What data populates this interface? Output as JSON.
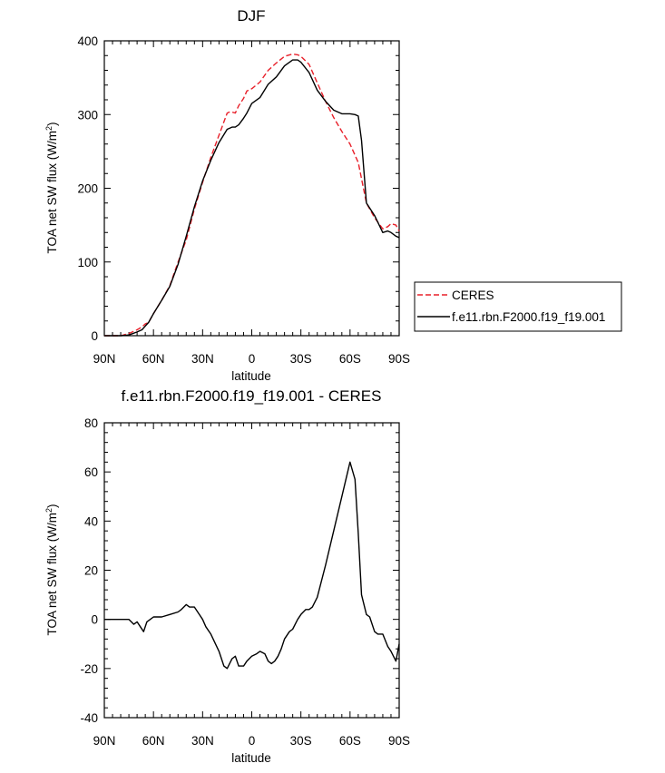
{
  "chart_data": [
    {
      "type": "line",
      "title": "DJF",
      "xlabel": "latitude",
      "ylabel": "TOA net SW flux (W/m",
      "ylabel_sup": "2",
      "ylabel_end": ")",
      "xlim": [
        -90,
        90
      ],
      "ylim": [
        0,
        400
      ],
      "x_ticks": [
        -90,
        -60,
        -30,
        0,
        30,
        60,
        90
      ],
      "x_tick_labels": [
        "90N",
        "60N",
        "30N",
        "0",
        "30S",
        "60S",
        "90S"
      ],
      "y_ticks": [
        0,
        100,
        200,
        300,
        400
      ],
      "y_tick_labels": [
        "0",
        "100",
        "200",
        "300",
        "400"
      ],
      "legend": {
        "placement": "right",
        "items": [
          "CERES",
          "f.e11.rbn.F2000.f19_f19.001"
        ]
      },
      "series": [
        {
          "name": "CERES",
          "color": "#e8202a",
          "dash": "dashed",
          "x": [
            -90,
            -80,
            -75,
            -70,
            -67,
            -65,
            -63,
            -60,
            -55,
            -50,
            -45,
            -40,
            -35,
            -30,
            -25,
            -20,
            -15,
            -13,
            -10,
            -8,
            -5,
            -3,
            0,
            5,
            10,
            15,
            20,
            25,
            28,
            30,
            35,
            40,
            45,
            50,
            55,
            60,
            65,
            70,
            75,
            80,
            83,
            85,
            88,
            90
          ],
          "y": [
            0,
            0,
            3,
            8,
            12,
            16,
            18,
            30,
            48,
            68,
            100,
            130,
            172,
            208,
            242,
            272,
            302,
            304,
            302,
            312,
            322,
            332,
            335,
            344,
            360,
            370,
            379,
            382,
            381,
            379,
            368,
            343,
            318,
            296,
            277,
            260,
            235,
            180,
            160,
            145,
            148,
            152,
            150,
            142
          ]
        },
        {
          "name": "f.e11.rbn.F2000.f19_f19.001",
          "color": "#000000",
          "dash": "solid",
          "x": [
            -90,
            -80,
            -75,
            -70,
            -67,
            -65,
            -63,
            -60,
            -55,
            -50,
            -45,
            -40,
            -35,
            -30,
            -25,
            -20,
            -15,
            -12,
            -10,
            -8,
            -5,
            -3,
            0,
            5,
            10,
            15,
            20,
            25,
            28,
            30,
            35,
            40,
            45,
            50,
            55,
            60,
            63,
            65,
            67,
            70,
            75,
            80,
            83,
            85,
            88,
            90
          ],
          "y": [
            0,
            0,
            1,
            5,
            8,
            13,
            18,
            30,
            48,
            67,
            97,
            135,
            175,
            210,
            238,
            262,
            280,
            283,
            283,
            286,
            295,
            302,
            315,
            323,
            341,
            351,
            366,
            374,
            374,
            371,
            357,
            333,
            318,
            306,
            301,
            301,
            300,
            298,
            265,
            180,
            163,
            140,
            142,
            140,
            135,
            133
          ]
        }
      ]
    },
    {
      "type": "line",
      "title": "f.e11.rbn.F2000.f19_f19.001 - CERES",
      "xlabel": "latitude",
      "ylabel": "TOA net SW flux (W/m",
      "ylabel_sup": "2",
      "ylabel_end": ")",
      "xlim": [
        -90,
        90
      ],
      "ylim": [
        -40,
        80
      ],
      "x_ticks": [
        -90,
        -60,
        -30,
        0,
        30,
        60,
        90
      ],
      "x_tick_labels": [
        "90N",
        "60N",
        "30N",
        "0",
        "30S",
        "60S",
        "90S"
      ],
      "y_ticks": [
        -40,
        -20,
        0,
        20,
        40,
        60,
        80
      ],
      "y_tick_labels": [
        "-40",
        "-20",
        "0",
        "20",
        "40",
        "60",
        "80"
      ],
      "series": [
        {
          "name": "f.e11.rbn.F2000.f19_f19.001 - CERES",
          "color": "#000000",
          "dash": "solid",
          "x": [
            -90,
            -75,
            -72,
            -70,
            -68,
            -66,
            -64,
            -62,
            -60,
            -57,
            -55,
            -50,
            -45,
            -43,
            -40,
            -38,
            -35,
            -32,
            -30,
            -28,
            -25,
            -20,
            -17,
            -15,
            -12,
            -10,
            -8,
            -5,
            -3,
            0,
            3,
            5,
            8,
            10,
            12,
            14,
            16,
            18,
            20,
            23,
            25,
            28,
            30,
            33,
            35,
            37,
            40,
            45,
            50,
            55,
            60,
            63,
            65,
            67,
            70,
            72,
            75,
            77,
            80,
            83,
            85,
            88,
            90
          ],
          "y": [
            0,
            0,
            -2,
            -1,
            -3,
            -5,
            -1,
            0,
            1,
            1,
            1,
            2,
            3,
            4,
            6,
            5,
            5,
            2,
            0,
            -3,
            -6,
            -13,
            -19,
            -20,
            -16,
            -15,
            -19,
            -19,
            -17,
            -15,
            -14,
            -13,
            -14,
            -17,
            -18,
            -17,
            -15,
            -12,
            -8,
            -5,
            -4,
            0,
            2,
            4,
            4,
            5,
            9,
            22,
            36,
            50,
            64,
            57,
            35,
            10,
            2,
            1,
            -5,
            -6,
            -6,
            -11,
            -13,
            -17,
            -10
          ]
        }
      ]
    }
  ]
}
